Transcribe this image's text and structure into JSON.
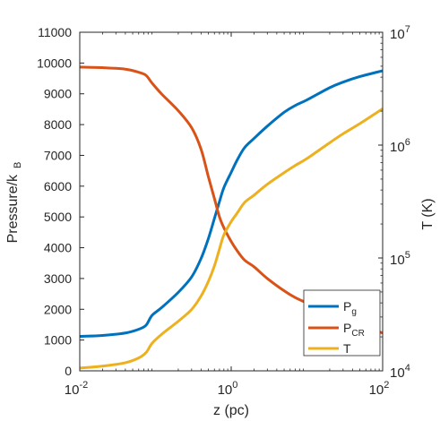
{
  "chart_data": {
    "type": "line",
    "title": "",
    "xlabel": "z (pc)",
    "ylabel_left": "Pressure/k",
    "ylabel_left_sub": "B",
    "ylabel_right": "T (K)",
    "xscale": "log",
    "xlim": [
      0.01,
      100
    ],
    "ylim_left": [
      0,
      11000
    ],
    "yscale_right": "log",
    "ylim_right": [
      10000,
      10000000
    ],
    "x_ticks": [
      {
        "value": 0.01,
        "base": "10",
        "exp": "-2"
      },
      {
        "value": 1,
        "base": "10",
        "exp": "0"
      },
      {
        "value": 100,
        "base": "10",
        "exp": "2"
      }
    ],
    "y_left_ticks": [
      {
        "value": 0,
        "label": "0"
      },
      {
        "value": 1000,
        "label": "1000"
      },
      {
        "value": 2000,
        "label": "2000"
      },
      {
        "value": 3000,
        "label": "3000"
      },
      {
        "value": 4000,
        "label": "4000"
      },
      {
        "value": 5000,
        "label": "5000"
      },
      {
        "value": 6000,
        "label": "6000"
      },
      {
        "value": 7000,
        "label": "7000"
      },
      {
        "value": 8000,
        "label": "8000"
      },
      {
        "value": 9000,
        "label": "9000"
      },
      {
        "value": 10000,
        "label": "10000"
      },
      {
        "value": 11000,
        "label": "11000"
      }
    ],
    "y_right_ticks": [
      {
        "value": 10000,
        "base": "10",
        "exp": "4"
      },
      {
        "value": 100000,
        "base": "10",
        "exp": "5"
      },
      {
        "value": 1000000,
        "base": "10",
        "exp": "6"
      },
      {
        "value": 10000000,
        "base": "10",
        "exp": "7"
      }
    ],
    "grid": false,
    "legend_position": "bottom-right",
    "series": [
      {
        "name": "P",
        "name_sub": "g",
        "axis": "left",
        "color": "#0072BD",
        "x": [
          0.01,
          0.02,
          0.04,
          0.06,
          0.075,
          0.09,
          0.12,
          0.2,
          0.3,
          0.4,
          0.5,
          0.6,
          0.7,
          0.8,
          1.0,
          1.2,
          1.5,
          2,
          3,
          5,
          7,
          10,
          20,
          30,
          50,
          100
        ],
        "y": [
          1120,
          1150,
          1230,
          1350,
          1480,
          1800,
          2050,
          2550,
          3050,
          3650,
          4300,
          4950,
          5500,
          5950,
          6450,
          6850,
          7250,
          7550,
          7950,
          8400,
          8620,
          8800,
          9200,
          9380,
          9560,
          9750
        ]
      },
      {
        "name": "P",
        "name_sub": "CR",
        "axis": "left",
        "color": "#D95319",
        "x": [
          0.01,
          0.02,
          0.04,
          0.06,
          0.075,
          0.09,
          0.12,
          0.2,
          0.3,
          0.4,
          0.5,
          0.6,
          0.7,
          0.8,
          1.0,
          1.2,
          1.5,
          2,
          3,
          5,
          7,
          10,
          20,
          30,
          50,
          100
        ],
        "y": [
          9870,
          9850,
          9800,
          9700,
          9600,
          9350,
          9000,
          8450,
          7900,
          7200,
          6300,
          5600,
          5000,
          4650,
          4200,
          3900,
          3600,
          3380,
          3000,
          2600,
          2380,
          2200,
          1800,
          1620,
          1440,
          1230
        ]
      },
      {
        "name": "T",
        "name_sub": "",
        "axis": "right",
        "color": "#EDB120",
        "x": [
          0.01,
          0.02,
          0.04,
          0.06,
          0.075,
          0.09,
          0.12,
          0.2,
          0.3,
          0.4,
          0.5,
          0.6,
          0.7,
          0.8,
          1.0,
          1.2,
          1.5,
          2,
          3,
          5,
          7,
          10,
          20,
          30,
          50,
          100
        ],
        "y": [
          10600,
          11000,
          11800,
          13000,
          14500,
          17500,
          21000,
          27500,
          35000,
          46000,
          62000,
          85000,
          120000,
          160000,
          210000,
          250000,
          310000,
          360000,
          450000,
          570000,
          660000,
          760000,
          1050000,
          1260000,
          1550000,
          2100000
        ]
      }
    ]
  }
}
